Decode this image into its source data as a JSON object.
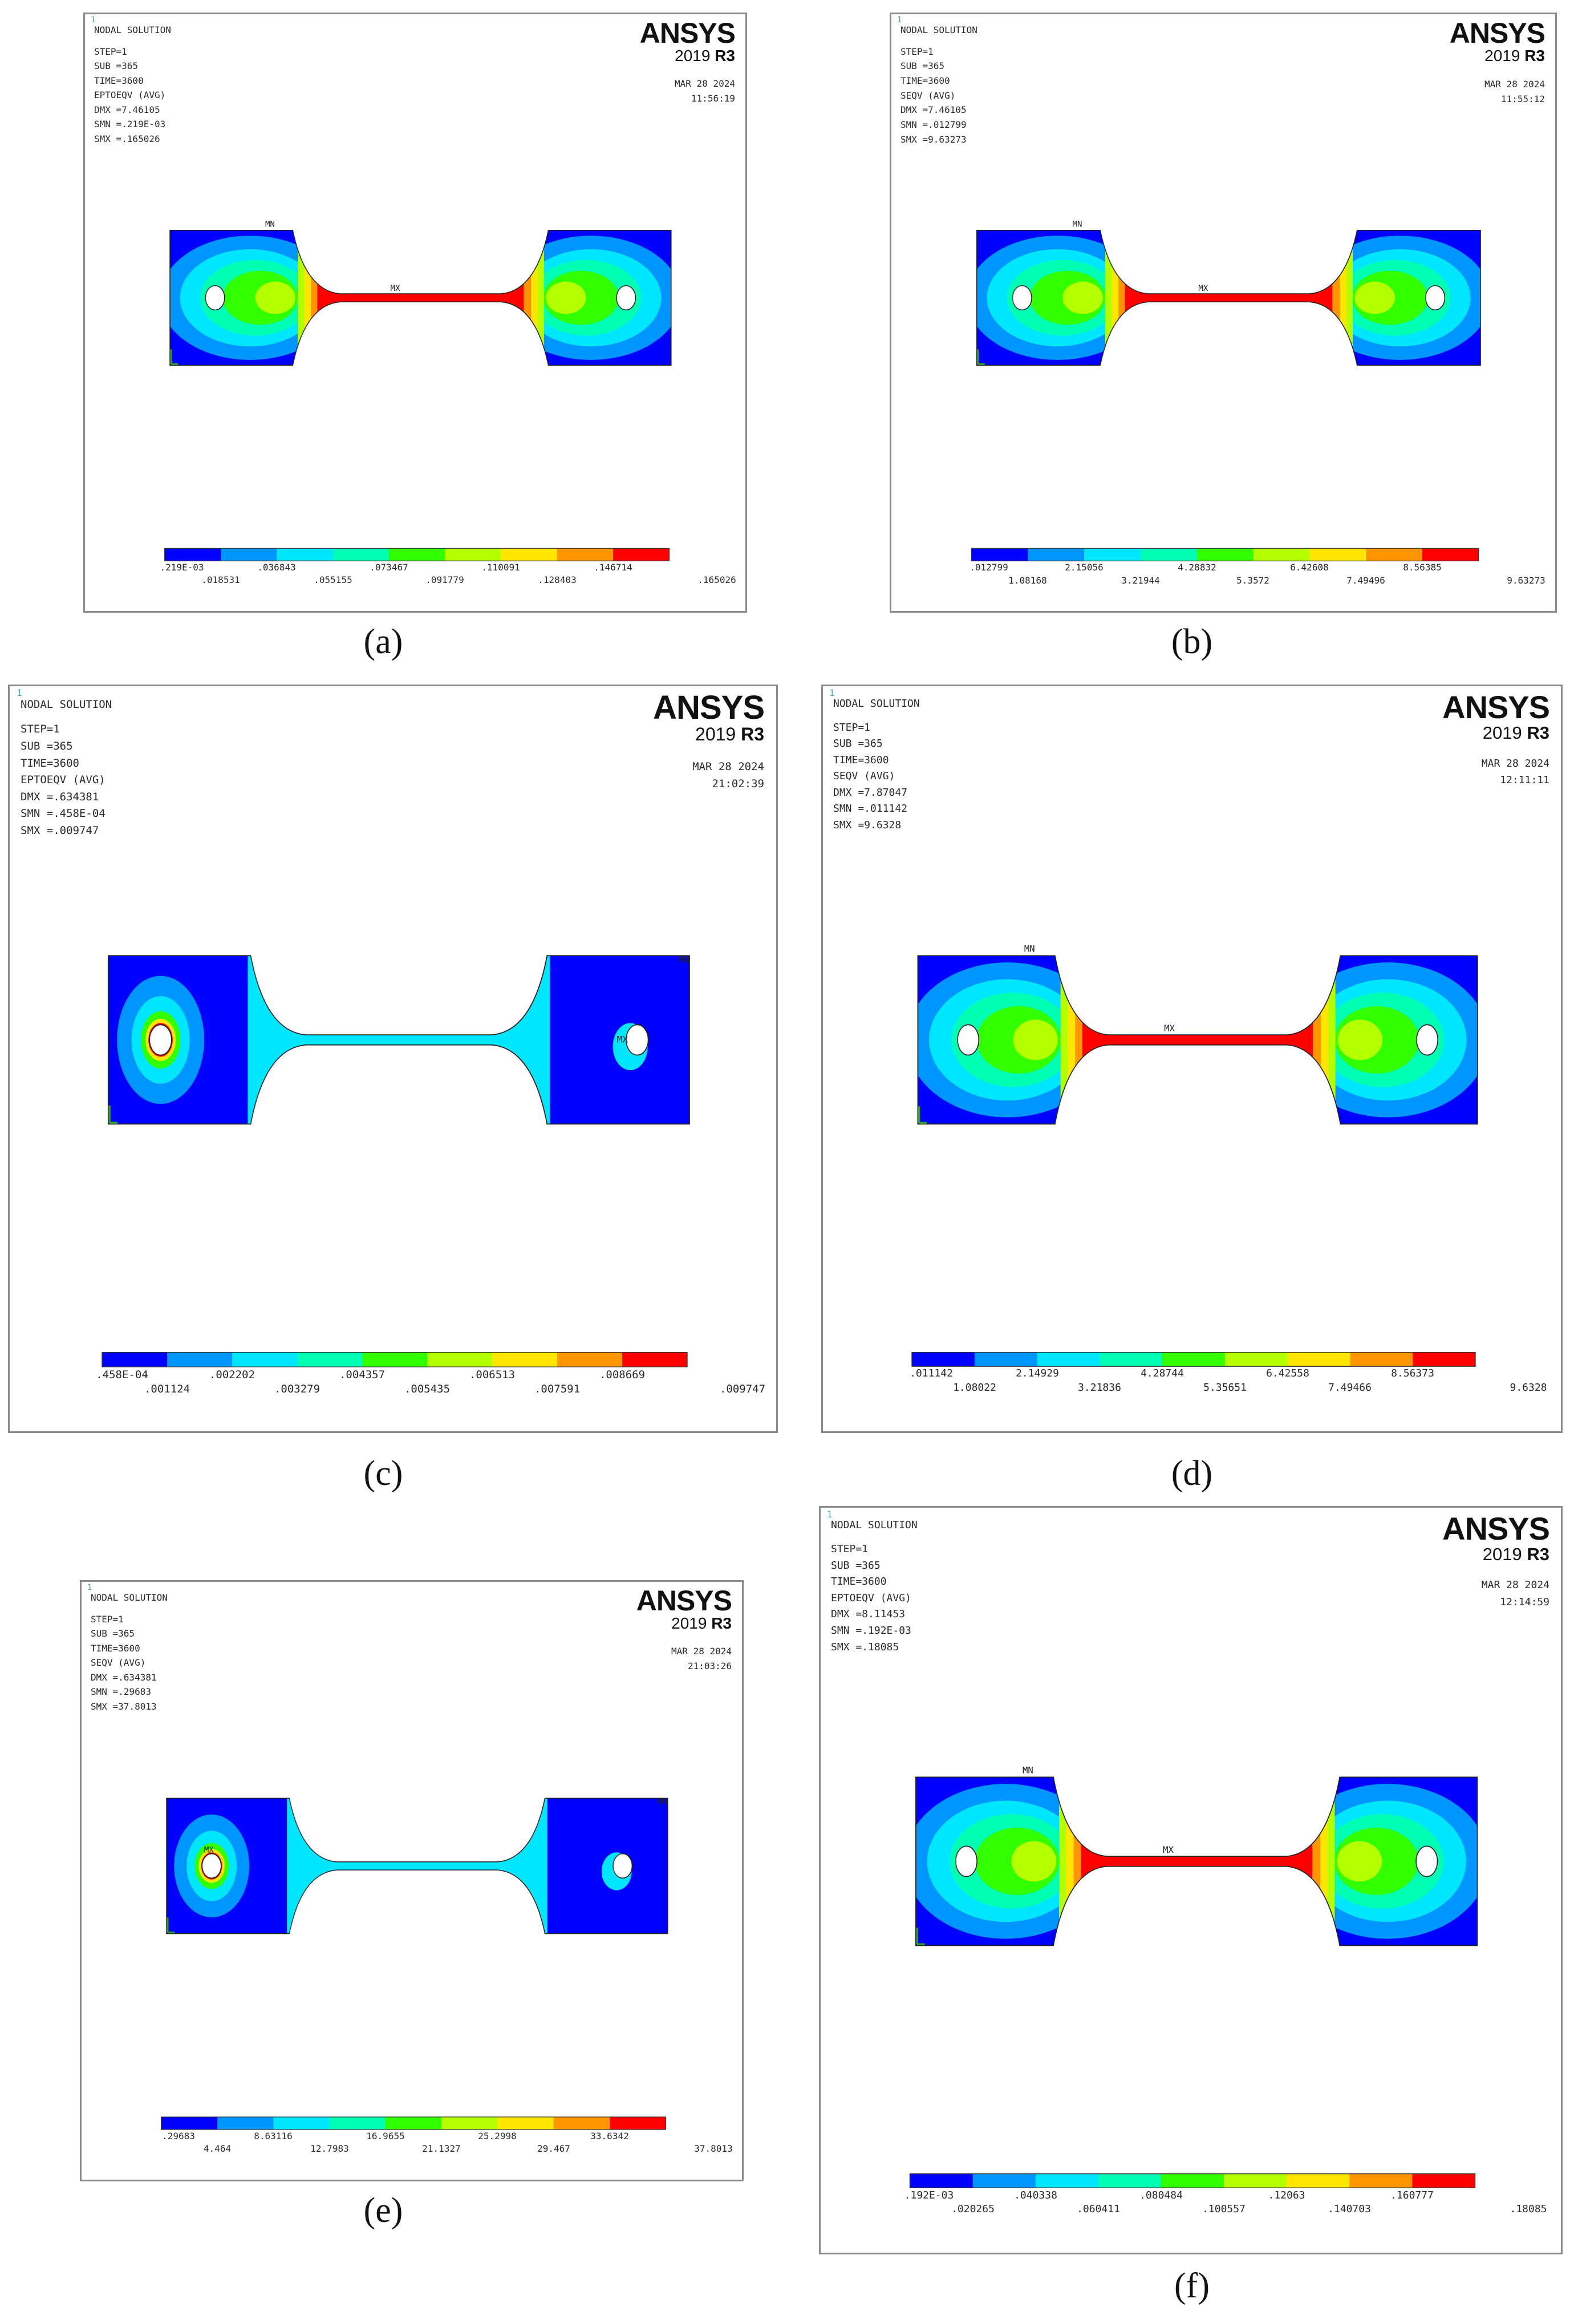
{
  "panels": [
    {
      "id": "a",
      "caption": "(a)",
      "corner": "1",
      "header": [
        "NODAL SOLUTION",
        "STEP=1",
        "SUB =365",
        "TIME=3600",
        "EPTOEQV  (AVG)",
        "DMX =7.46105",
        "SMN =.219E-03",
        "SMX =.165026"
      ],
      "brand": {
        "logo": "ANSYS",
        "version": "2019",
        "release": "R3"
      },
      "date": "MAR 28 2024",
      "time": "11:56:19",
      "legend_top": [
        ".219E-03",
        ".036843",
        ".073467",
        ".110091",
        ".146714"
      ],
      "legend_bottom": [
        ".018531",
        ".055155",
        ".091779",
        ".128403",
        ".165026"
      ],
      "markers": [
        "MN",
        "MX"
      ],
      "field": "high"
    },
    {
      "id": "b",
      "caption": "(b)",
      "corner": "1",
      "header": [
        "NODAL SOLUTION",
        "STEP=1",
        "SUB =365",
        "TIME=3600",
        "SEQV     (AVG)",
        "DMX =7.46105",
        "SMN =.012799",
        "SMX =9.63273"
      ],
      "brand": {
        "logo": "ANSYS",
        "version": "2019",
        "release": "R3"
      },
      "date": "MAR 28 2024",
      "time": "11:55:12",
      "legend_top": [
        ".012799",
        "2.15056",
        "4.28832",
        "6.42608",
        "8.56385"
      ],
      "legend_bottom": [
        "1.08168",
        "3.21944",
        "5.3572",
        "7.49496",
        "9.63273"
      ],
      "markers": [
        "MN",
        "MX"
      ],
      "field": "high"
    },
    {
      "id": "c",
      "caption": "(c)",
      "corner": "1",
      "header": [
        "NODAL SOLUTION",
        "STEP=1",
        "SUB =365",
        "TIME=3600",
        "EPTOEQV  (AVG)",
        "DMX =.634381",
        "SMN =.458E-04",
        "SMX =.009747"
      ],
      "brand": {
        "logo": "ANSYS",
        "version": "2019",
        "release": "R3"
      },
      "date": "MAR 28 2024",
      "time": "21:02:39",
      "legend_top": [
        ".458E-04",
        ".002202",
        ".004357",
        ".006513",
        ".008669"
      ],
      "legend_bottom": [
        ".001124",
        ".003279",
        ".005435",
        ".007591",
        ".009747"
      ],
      "markers": [
        "MN",
        "MX"
      ],
      "field": "low"
    },
    {
      "id": "d",
      "caption": "(d)",
      "corner": "1",
      "header": [
        "NODAL SOLUTION",
        "STEP=1",
        "SUB =365",
        "TIME=3600",
        "SEQV     (AVG)",
        "DMX =7.87047",
        "SMN =.011142",
        "SMX =9.6328"
      ],
      "brand": {
        "logo": "ANSYS",
        "version": "2019",
        "release": "R3"
      },
      "date": "MAR 28 2024",
      "time": "12:11:11",
      "legend_top": [
        ".011142",
        "2.14929",
        "4.28744",
        "6.42558",
        "8.56373"
      ],
      "legend_bottom": [
        "1.08022",
        "3.21836",
        "5.35651",
        "7.49466",
        "9.6328"
      ],
      "markers": [
        "MN",
        "MX"
      ],
      "field": "high"
    },
    {
      "id": "e",
      "caption": "(e)",
      "corner": "1",
      "header": [
        "NODAL SOLUTION",
        "STEP=1",
        "SUB =365",
        "TIME=3600",
        "SEQV     (AVG)",
        "DMX =.634381",
        "SMN =.29683",
        "SMX =37.8013"
      ],
      "brand": {
        "logo": "ANSYS",
        "version": "2019",
        "release": "R3"
      },
      "date": "MAR 28 2024",
      "time": "21:03:26",
      "legend_top": [
        ".29683",
        "8.63116",
        "16.9655",
        "25.2998",
        "33.6342"
      ],
      "legend_bottom": [
        "4.464",
        "12.7983",
        "21.1327",
        "29.467",
        "37.8013"
      ],
      "markers": [
        "MN",
        "MX"
      ],
      "field": "low"
    },
    {
      "id": "f",
      "caption": "(f)",
      "corner": "1",
      "header": [
        "NODAL SOLUTION",
        "STEP=1",
        "SUB =365",
        "TIME=3600",
        "EPTOEQV  (AVG)",
        "DMX =8.11453",
        "SMN =.192E-03",
        "SMX =.18085"
      ],
      "brand": {
        "logo": "ANSYS",
        "version": "2019",
        "release": "R3"
      },
      "date": "MAR 28 2024",
      "time": "12:14:59",
      "legend_top": [
        ".192E-03",
        ".040338",
        ".080484",
        ".12063",
        ".160777"
      ],
      "legend_bottom": [
        ".020265",
        ".060411",
        ".100557",
        ".140703",
        ".18085"
      ],
      "markers": [
        "MN",
        "MX"
      ],
      "field": "high"
    }
  ],
  "colors": {
    "contour_scale": [
      "#0000ff",
      "#0096ff",
      "#00e6ff",
      "#00ffb4",
      "#32ff00",
      "#b4ff00",
      "#ffe600",
      "#ff9600",
      "#ff0000"
    ],
    "frame": "#8a8a8a"
  }
}
